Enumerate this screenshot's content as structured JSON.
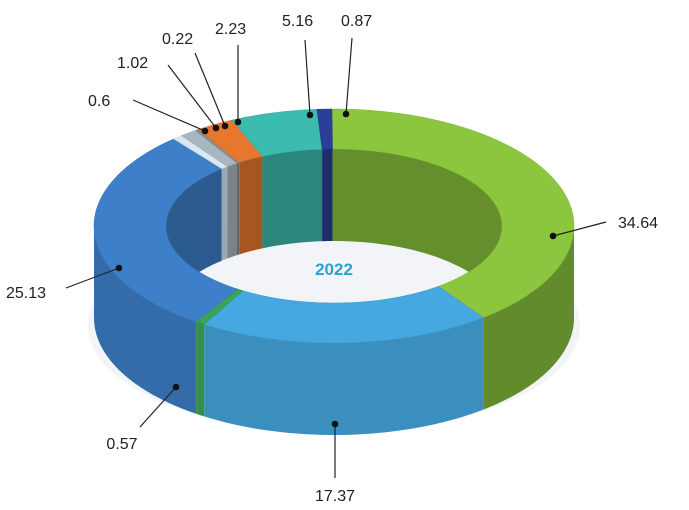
{
  "chart_data": {
    "type": "pie",
    "variant": "3d-donut",
    "center_label": "2022",
    "center_label_color": "#2aa3cf",
    "slices": [
      {
        "value": 34.64,
        "label": "34.64",
        "color": "#8cc63f"
      },
      {
        "value": 17.37,
        "label": "17.37",
        "color": "#45a8e0"
      },
      {
        "value": 0.57,
        "label": "0.57",
        "color": "#3aa35a"
      },
      {
        "value": 25.13,
        "label": "25.13",
        "color": "#3d7fc8"
      },
      {
        "value": 0.6,
        "label": "0.6",
        "color": "#d9e9f3"
      },
      {
        "value": 1.02,
        "label": "1.02",
        "color": "#a7b6c1"
      },
      {
        "value": 0.22,
        "label": "0.22",
        "color": "#8c8c8c"
      },
      {
        "value": 2.23,
        "label": "2.23",
        "color": "#e8772e"
      },
      {
        "value": 5.16,
        "label": "5.16",
        "color": "#3bbcaf"
      },
      {
        "value": 0.87,
        "label": "0.87",
        "color": "#2b3f99"
      }
    ]
  }
}
